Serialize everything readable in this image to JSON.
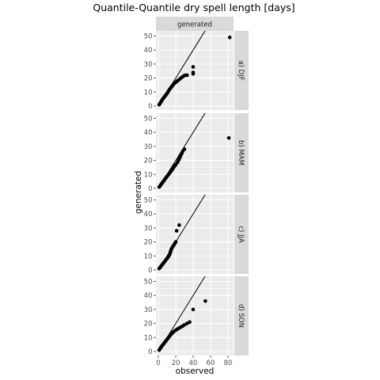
{
  "chart_data": {
    "type": "scatter",
    "title": "Quantile-Quantile dry spell length [days]",
    "xlabel": "observed",
    "ylabel": "generated",
    "column_strip": "generated",
    "xlim": [
      0,
      85
    ],
    "ylim": [
      0,
      51
    ],
    "x_ticks": [
      0,
      20,
      40,
      60,
      80
    ],
    "y_ticks": [
      0,
      10,
      20,
      30,
      40,
      50
    ],
    "reference_line": "y = x",
    "grid": true,
    "panel_background": "#ebebeb",
    "strip_background": "#d9d9d9",
    "point_color": "#000000",
    "line_color": "#000000",
    "panels": [
      {
        "label": "a) DJF",
        "points": [
          [
            1,
            1
          ],
          [
            2,
            2
          ],
          [
            3,
            3
          ],
          [
            4,
            4
          ],
          [
            5,
            5
          ],
          [
            6,
            5.7
          ],
          [
            7,
            6.6
          ],
          [
            8,
            7.4
          ],
          [
            9,
            8.2
          ],
          [
            10,
            9
          ],
          [
            11,
            10
          ],
          [
            12,
            11
          ],
          [
            13,
            12
          ],
          [
            14,
            12.8
          ],
          [
            15,
            13.6
          ],
          [
            16,
            14.4
          ],
          [
            17,
            15.2
          ],
          [
            18,
            16
          ],
          [
            19,
            16.5
          ],
          [
            20,
            17
          ],
          [
            21,
            17.5
          ],
          [
            22,
            18
          ],
          [
            23,
            18.5
          ],
          [
            25,
            19.5
          ],
          [
            27,
            20.5
          ],
          [
            29,
            21.5
          ],
          [
            31,
            22
          ],
          [
            33,
            22
          ],
          [
            40,
            23
          ],
          [
            40,
            24
          ],
          [
            40,
            28
          ],
          [
            82,
            49
          ]
        ]
      },
      {
        "label": "b) MAM",
        "points": [
          [
            1,
            1
          ],
          [
            2,
            1.8
          ],
          [
            3,
            2.7
          ],
          [
            4,
            3.5
          ],
          [
            5,
            4.4
          ],
          [
            6,
            5.2
          ],
          [
            7,
            6
          ],
          [
            8,
            7
          ],
          [
            9,
            7.8
          ],
          [
            10,
            8.6
          ],
          [
            11,
            9.4
          ],
          [
            12,
            10.2
          ],
          [
            13,
            11
          ],
          [
            14,
            11.8
          ],
          [
            15,
            12.7
          ],
          [
            16,
            13.5
          ],
          [
            17,
            14.4
          ],
          [
            18,
            15.3
          ],
          [
            19,
            16.2
          ],
          [
            20,
            17
          ],
          [
            22,
            18.5
          ],
          [
            23,
            20
          ],
          [
            24,
            21
          ],
          [
            25,
            22.5
          ],
          [
            26,
            24
          ],
          [
            27,
            25
          ],
          [
            28,
            26.5
          ],
          [
            30,
            28
          ],
          [
            81,
            36
          ]
        ]
      },
      {
        "label": "c) JJA",
        "points": [
          [
            1,
            1
          ],
          [
            2,
            1.8
          ],
          [
            3,
            2.6
          ],
          [
            4,
            3.4
          ],
          [
            5,
            4.2
          ],
          [
            6,
            5
          ],
          [
            7,
            5.8
          ],
          [
            8,
            6.6
          ],
          [
            9,
            7.4
          ],
          [
            10,
            8.2
          ],
          [
            11,
            9
          ],
          [
            12,
            10
          ],
          [
            13,
            11
          ],
          [
            13.5,
            12
          ],
          [
            14,
            13
          ],
          [
            14.5,
            14
          ],
          [
            15,
            15
          ],
          [
            16,
            16
          ],
          [
            17,
            17
          ],
          [
            18,
            18
          ],
          [
            19,
            19
          ],
          [
            20,
            20
          ],
          [
            21,
            28
          ],
          [
            24,
            32
          ]
        ]
      },
      {
        "label": "d) SON",
        "points": [
          [
            1,
            1
          ],
          [
            2,
            2
          ],
          [
            3,
            3
          ],
          [
            4,
            3.8
          ],
          [
            5,
            4.6
          ],
          [
            6,
            5.4
          ],
          [
            7,
            6.2
          ],
          [
            8,
            7
          ],
          [
            9,
            7.8
          ],
          [
            10,
            8.6
          ],
          [
            11,
            9.4
          ],
          [
            12,
            10.2
          ],
          [
            13,
            11
          ],
          [
            14,
            11.8
          ],
          [
            15,
            12.5
          ],
          [
            16,
            13.2
          ],
          [
            17,
            13.8
          ],
          [
            18,
            14.4
          ],
          [
            20,
            15.2
          ],
          [
            22,
            16
          ],
          [
            24,
            16.8
          ],
          [
            26,
            17.5
          ],
          [
            28,
            18.2
          ],
          [
            30,
            19
          ],
          [
            33,
            20
          ],
          [
            36,
            21
          ],
          [
            40,
            30
          ],
          [
            54,
            36
          ]
        ]
      }
    ]
  }
}
